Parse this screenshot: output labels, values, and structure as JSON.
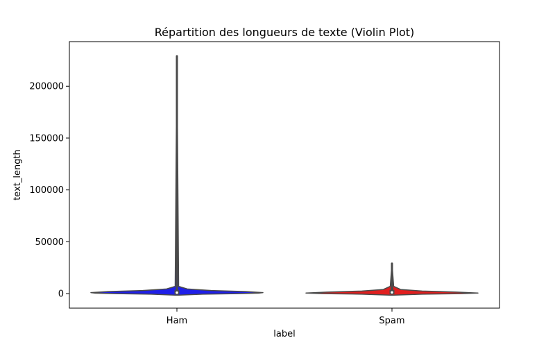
{
  "chart_data": {
    "type": "violin",
    "title": "Répartition des longueurs de texte (Violin Plot)",
    "xlabel": "label",
    "ylabel": "text_length",
    "categories": [
      "Ham",
      "Spam"
    ],
    "colors": {
      "Ham": "#1f1fe8",
      "Spam": "#e01f1f",
      "outline": "#4a4a4a"
    },
    "ylim": [
      -14000,
      243000
    ],
    "yticks": [
      0,
      50000,
      100000,
      150000,
      200000
    ],
    "ytick_labels": [
      "0",
      "50000",
      "100000",
      "150000",
      "200000"
    ],
    "grid": false,
    "violins": [
      {
        "name": "Ham",
        "min": 0,
        "max": 229000,
        "q1": 300,
        "median": 900,
        "q3": 2200,
        "whisker_low": 0,
        "whisker_high": 5000,
        "density": [
          {
            "y": -1500,
            "w": 0.0
          },
          {
            "y": -500,
            "w": 0.3
          },
          {
            "y": 0,
            "w": 0.7
          },
          {
            "y": 500,
            "w": 0.95
          },
          {
            "y": 1000,
            "w": 1.0
          },
          {
            "y": 2000,
            "w": 0.8
          },
          {
            "y": 3000,
            "w": 0.4
          },
          {
            "y": 4500,
            "w": 0.12
          },
          {
            "y": 7000,
            "w": 0.02
          },
          {
            "y": 229000,
            "w": 0.0
          }
        ]
      },
      {
        "name": "Spam",
        "min": 0,
        "max": 29000,
        "q1": 400,
        "median": 1200,
        "q3": 2500,
        "whisker_low": 0,
        "whisker_high": 6000,
        "density": [
          {
            "y": -1500,
            "w": 0.0
          },
          {
            "y": -500,
            "w": 0.35
          },
          {
            "y": 0,
            "w": 0.8
          },
          {
            "y": 600,
            "w": 1.0
          },
          {
            "y": 1500,
            "w": 0.75
          },
          {
            "y": 2500,
            "w": 0.35
          },
          {
            "y": 4000,
            "w": 0.1
          },
          {
            "y": 7000,
            "w": 0.02
          },
          {
            "y": 29000,
            "w": 0.0
          }
        ]
      }
    ]
  }
}
